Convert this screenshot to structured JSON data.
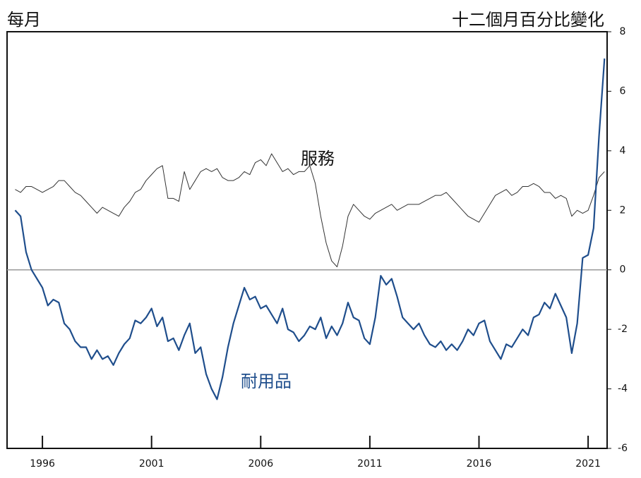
{
  "chart_data": {
    "type": "line",
    "title_left": "每月",
    "ylabel": "十二個月百分比變化",
    "x": [
      1994.75,
      1995,
      1995.25,
      1995.5,
      1995.75,
      1996,
      1996.25,
      1996.5,
      1996.75,
      1997,
      1997.25,
      1997.5,
      1997.75,
      1998,
      1998.25,
      1998.5,
      1998.75,
      1999,
      1999.25,
      1999.5,
      1999.75,
      2000,
      2000.25,
      2000.5,
      2000.75,
      2001,
      2001.25,
      2001.5,
      2001.75,
      2002,
      2002.25,
      2002.5,
      2002.75,
      2003,
      2003.25,
      2003.5,
      2003.75,
      2004,
      2004.25,
      2004.5,
      2004.75,
      2005,
      2005.25,
      2005.5,
      2005.75,
      2006,
      2006.25,
      2006.5,
      2006.75,
      2007,
      2007.25,
      2007.5,
      2007.75,
      2008,
      2008.25,
      2008.5,
      2008.75,
      2009,
      2009.25,
      2009.5,
      2009.75,
      2010,
      2010.25,
      2010.5,
      2010.75,
      2011,
      2011.25,
      2011.5,
      2011.75,
      2012,
      2012.25,
      2012.5,
      2012.75,
      2013,
      2013.25,
      2013.5,
      2013.75,
      2014,
      2014.25,
      2014.5,
      2014.75,
      2015,
      2015.25,
      2015.5,
      2015.75,
      2016,
      2016.25,
      2016.5,
      2016.75,
      2017,
      2017.25,
      2017.5,
      2017.75,
      2018,
      2018.25,
      2018.5,
      2018.75,
      2019,
      2019.25,
      2019.5,
      2019.75,
      2020,
      2020.25,
      2020.5,
      2020.75,
      2021,
      2021.25,
      2021.5,
      2021.75
    ],
    "series": [
      {
        "name": "服務",
        "color": "#333333",
        "width": 1,
        "values": [
          2.7,
          2.6,
          2.8,
          2.8,
          2.7,
          2.6,
          2.7,
          2.8,
          3.0,
          3.0,
          2.8,
          2.6,
          2.5,
          2.3,
          2.1,
          1.9,
          2.1,
          2.0,
          1.9,
          1.8,
          2.1,
          2.3,
          2.6,
          2.7,
          3.0,
          3.2,
          3.4,
          3.5,
          2.4,
          2.4,
          2.3,
          3.3,
          2.7,
          3.0,
          3.3,
          3.4,
          3.3,
          3.4,
          3.1,
          3.0,
          3.0,
          3.1,
          3.3,
          3.2,
          3.6,
          3.7,
          3.5,
          3.9,
          3.6,
          3.3,
          3.4,
          3.2,
          3.3,
          3.3,
          3.5,
          2.9,
          1.8,
          0.9,
          0.3,
          0.1,
          0.8,
          1.8,
          2.2,
          2.0,
          1.8,
          1.7,
          1.9,
          2.0,
          2.1,
          2.2,
          2.0,
          2.1,
          2.2,
          2.2,
          2.2,
          2.3,
          2.4,
          2.5,
          2.5,
          2.6,
          2.4,
          2.2,
          2.0,
          1.8,
          1.7,
          1.6,
          1.9,
          2.2,
          2.5,
          2.6,
          2.7,
          2.5,
          2.6,
          2.8,
          2.8,
          2.9,
          2.8,
          2.6,
          2.6,
          2.4,
          2.5,
          2.4,
          1.8,
          2.0,
          1.9,
          2.0,
          2.5,
          3.1,
          3.3
        ]
      },
      {
        "name": "耐用品",
        "color": "#1f4e8c",
        "width": 2.2,
        "values": [
          2.0,
          1.8,
          0.6,
          0.0,
          -0.3,
          -0.6,
          -1.2,
          -1.0,
          -1.1,
          -1.8,
          -2.0,
          -2.4,
          -2.6,
          -2.6,
          -3.0,
          -2.7,
          -3.0,
          -2.9,
          -3.2,
          -2.8,
          -2.5,
          -2.3,
          -1.7,
          -1.8,
          -1.6,
          -1.3,
          -1.9,
          -1.6,
          -2.4,
          -2.3,
          -2.7,
          -2.2,
          -1.8,
          -2.8,
          -2.6,
          -3.5,
          -4.0,
          -4.35,
          -3.6,
          -2.6,
          -1.8,
          -1.2,
          -0.6,
          -1.0,
          -0.9,
          -1.3,
          -1.2,
          -1.5,
          -1.8,
          -1.3,
          -2.0,
          -2.1,
          -2.4,
          -2.2,
          -1.9,
          -2.0,
          -1.6,
          -2.3,
          -1.9,
          -2.2,
          -1.8,
          -1.1,
          -1.6,
          -1.7,
          -2.3,
          -2.5,
          -1.6,
          -0.2,
          -0.5,
          -0.3,
          -0.9,
          -1.6,
          -1.8,
          -2.0,
          -1.8,
          -2.2,
          -2.5,
          -2.6,
          -2.4,
          -2.7,
          -2.5,
          -2.7,
          -2.4,
          -2.0,
          -2.2,
          -1.8,
          -1.7,
          -2.4,
          -2.7,
          -3.0,
          -2.5,
          -2.6,
          -2.3,
          -2.0,
          -2.2,
          -1.6,
          -1.5,
          -1.1,
          -1.3,
          -0.8,
          -1.2,
          -1.6,
          -2.8,
          -1.8,
          0.4,
          0.5,
          1.4,
          4.5,
          7.1
        ]
      }
    ],
    "xlim": [
      1994.38,
      2021.87
    ],
    "xticks": [
      1996,
      2001,
      2006,
      2011,
      2016,
      2021
    ],
    "ylim": [
      -6,
      8
    ],
    "yticks": [
      -6,
      -4,
      -2,
      0,
      2,
      4,
      6,
      8
    ]
  }
}
